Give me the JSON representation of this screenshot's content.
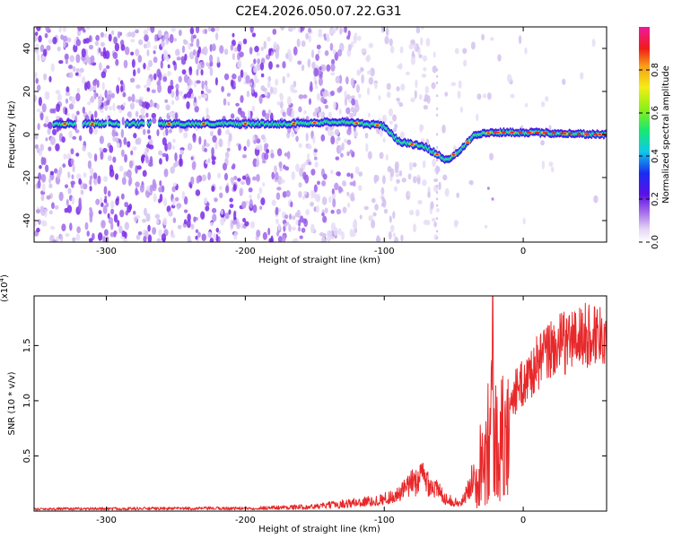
{
  "title": "C2E4.2026.050.07.22.G31",
  "chart_data": [
    {
      "type": "heatmap",
      "xlabel": "Height of straight line (km)",
      "ylabel": "Frequency (Hz)",
      "xlim": [
        -352,
        60
      ],
      "ylim": [
        -50,
        50
      ],
      "xticks": [
        -300,
        -200,
        -100,
        0
      ],
      "yticks": [
        -40,
        -20,
        0,
        20,
        40
      ],
      "colorbar": {
        "label": "Normalized spectral amplitude",
        "range": [
          0,
          1
        ],
        "ticks": [
          0.0,
          0.2,
          0.4,
          0.6,
          0.8
        ],
        "tick_labels": [
          "0.0",
          "0.2",
          "0.4",
          "0.6",
          "0.8"
        ]
      },
      "ridge": {
        "description_points": [
          {
            "x": -335,
            "y": 5
          },
          {
            "x": -250,
            "y": 5
          },
          {
            "x": -170,
            "y": 5
          },
          {
            "x": -130,
            "y": 6
          },
          {
            "x": -100,
            "y": 4
          },
          {
            "x": -90,
            "y": -3
          },
          {
            "x": -70,
            "y": -6
          },
          {
            "x": -55,
            "y": -12
          },
          {
            "x": -45,
            "y": -7
          },
          {
            "x": -35,
            "y": 0
          },
          {
            "x": -20,
            "y": 1
          },
          {
            "x": 0,
            "y": 1
          },
          {
            "x": 60,
            "y": 0
          }
        ],
        "gaps": [
          [
            -322,
            -317
          ],
          [
            -300,
            -298
          ],
          [
            -290,
            -286
          ],
          [
            -273,
            -270
          ],
          [
            -268,
            -262
          ]
        ]
      }
    },
    {
      "type": "line",
      "xlabel": "Height of straight line (km)",
      "ylabel": "SNR (10 * v/v)",
      "y_multiplier": "(x10^4)",
      "y_multiplier_base": "(x10",
      "y_multiplier_exp": "4",
      "xlim": [
        -352,
        60
      ],
      "ylim": [
        0,
        19500
      ],
      "xticks": [
        -300,
        -200,
        -100,
        0
      ],
      "yticks": [
        5000,
        10000,
        15000
      ],
      "ytick_labels": [
        "0.5",
        "1.0",
        "1.5"
      ],
      "series": [
        {
          "color": "#e8282a",
          "envelope": [
            {
              "x": -352,
              "y": 200
            },
            {
              "x": -200,
              "y": 250
            },
            {
              "x": -150,
              "y": 400
            },
            {
              "x": -110,
              "y": 900
            },
            {
              "x": -90,
              "y": 1600
            },
            {
              "x": -80,
              "y": 2800
            },
            {
              "x": -72,
              "y": 3500
            },
            {
              "x": -65,
              "y": 2500
            },
            {
              "x": -55,
              "y": 1200
            },
            {
              "x": -45,
              "y": 700
            },
            {
              "x": -38,
              "y": 2500
            },
            {
              "x": -33,
              "y": 6000
            },
            {
              "x": -28,
              "y": 10000
            },
            {
              "x": -23,
              "y": 15000
            },
            {
              "x": -20,
              "y": 11000
            },
            {
              "x": -10,
              "y": 11500
            },
            {
              "x": 0,
              "y": 13000
            },
            {
              "x": 10,
              "y": 15000
            },
            {
              "x": 20,
              "y": 16500
            },
            {
              "x": 35,
              "y": 17500
            },
            {
              "x": 50,
              "y": 18000
            },
            {
              "x": 60,
              "y": 18500
            }
          ],
          "spike": {
            "x": -22,
            "y": 19500
          }
        }
      ]
    }
  ]
}
